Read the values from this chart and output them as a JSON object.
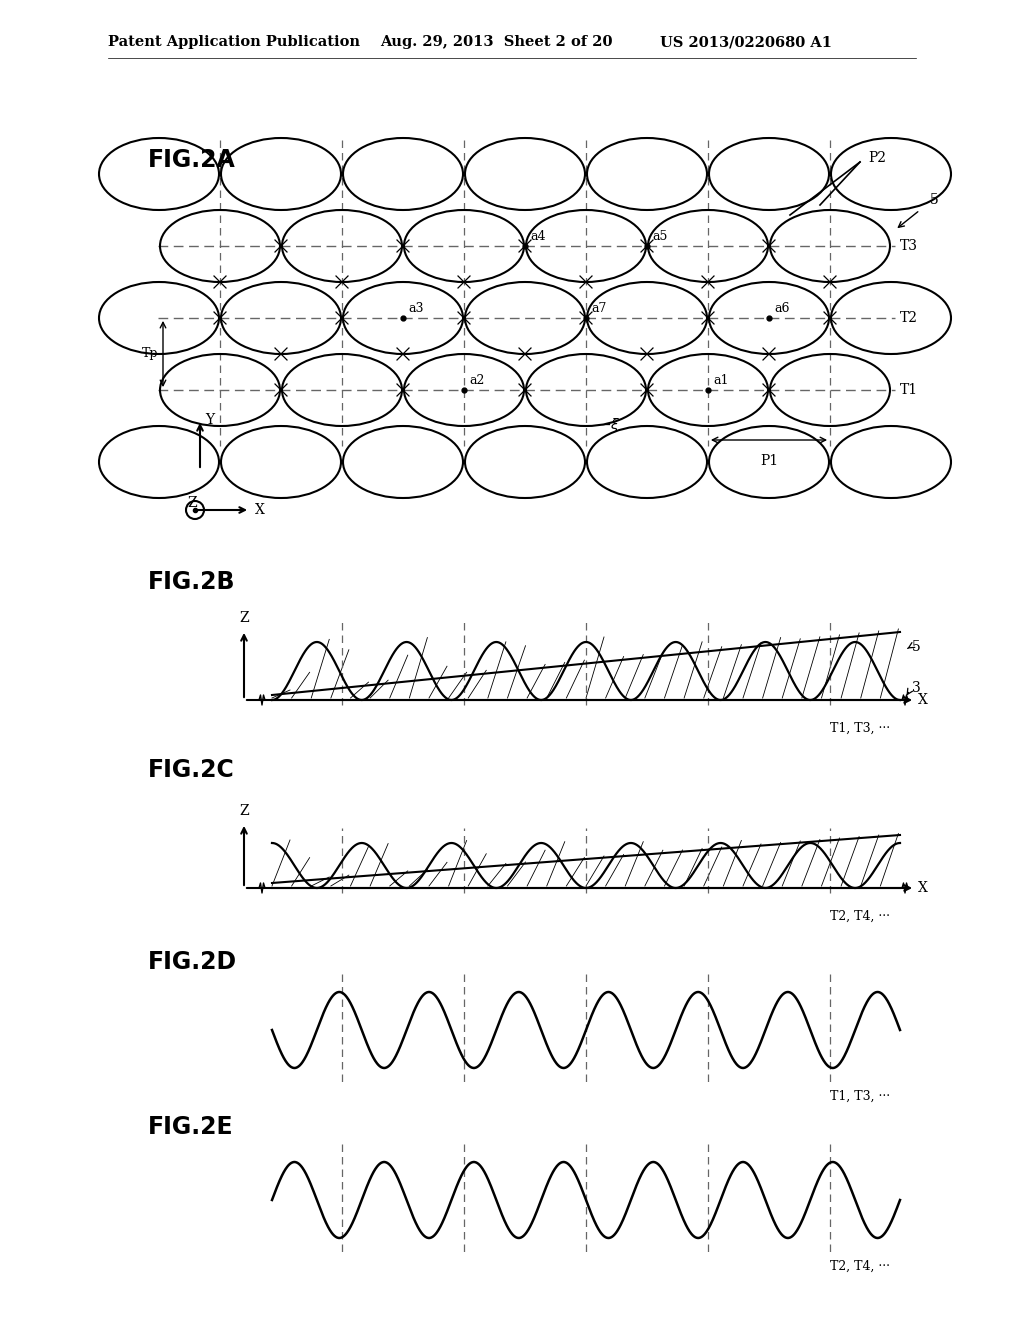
{
  "title_header": "Patent Application Publication",
  "date_header": "Aug. 29, 2013  Sheet 2 of 20",
  "patent_header": "US 2013/0220680 A1",
  "fig2a_label": "FIG.2A",
  "fig2b_label": "FIG.2B",
  "fig2c_label": "FIG.2C",
  "fig2d_label": "FIG.2D",
  "fig2e_label": "FIG.2E",
  "bg_color": "#ffffff",
  "line_color": "#000000",
  "dashed_color": "#666666"
}
